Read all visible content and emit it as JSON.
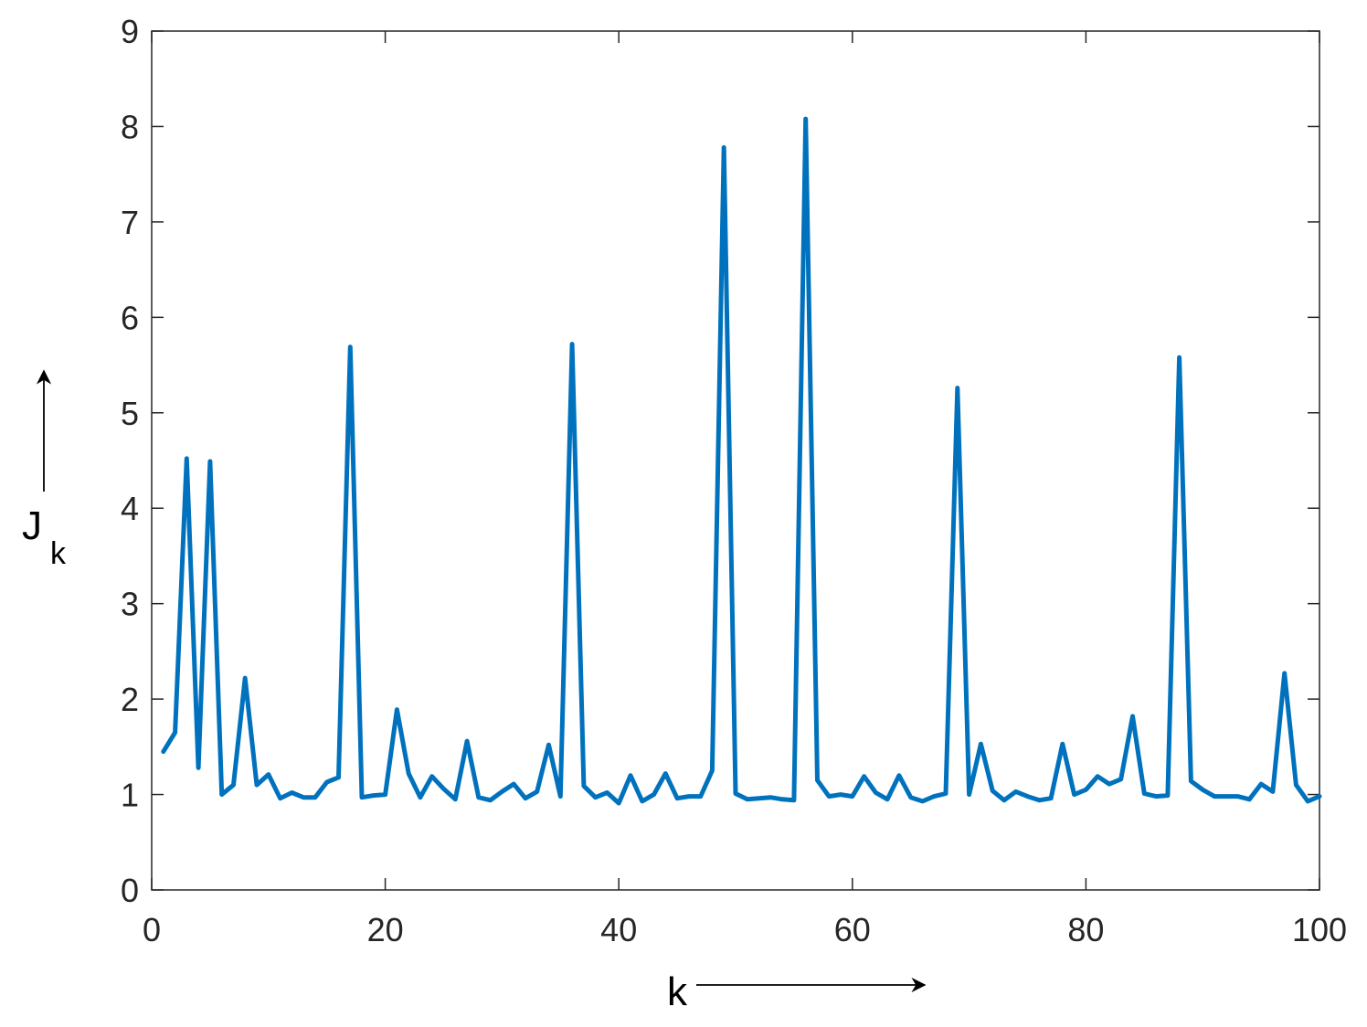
{
  "chart_data": {
    "type": "line",
    "xlabel": "k",
    "ylabel": {
      "main": "J",
      "subscript": "k"
    },
    "xlim": [
      0,
      100
    ],
    "ylim": [
      0,
      9
    ],
    "xticks": [
      "0",
      "20",
      "40",
      "60",
      "80",
      "100"
    ],
    "yticks": [
      "0",
      "1",
      "2",
      "3",
      "4",
      "5",
      "6",
      "7",
      "8",
      "9"
    ],
    "grid": false,
    "line_color": "#0072BD",
    "series": [
      {
        "x": [
          1,
          2,
          3,
          4,
          5,
          6,
          7,
          8,
          9,
          10,
          11,
          12,
          13,
          14,
          15,
          16,
          17,
          18,
          19,
          20,
          21,
          22,
          23,
          24,
          25,
          26,
          27,
          28,
          29,
          30,
          31,
          32,
          33,
          34,
          35,
          36,
          37,
          38,
          39,
          40,
          41,
          42,
          43,
          44,
          45,
          46,
          47,
          48,
          49,
          50,
          51,
          52,
          53,
          54,
          55,
          56,
          57,
          58,
          59,
          60,
          61,
          62,
          63,
          64,
          65,
          66,
          67,
          68,
          69,
          70,
          71,
          72,
          73,
          74,
          75,
          76,
          77,
          78,
          79,
          80,
          81,
          82,
          83,
          84,
          85,
          86,
          87,
          88,
          89,
          90,
          91,
          92,
          93,
          94,
          95,
          96,
          97,
          98,
          99,
          100
        ],
        "values": [
          1.45,
          1.65,
          4.52,
          1.28,
          4.49,
          1.0,
          1.1,
          2.22,
          1.1,
          1.21,
          0.96,
          1.02,
          0.97,
          0.97,
          1.13,
          1.18,
          5.69,
          0.97,
          0.99,
          1.0,
          1.89,
          1.22,
          0.97,
          1.19,
          1.06,
          0.95,
          1.56,
          0.97,
          0.94,
          1.03,
          1.11,
          0.96,
          1.03,
          1.52,
          0.98,
          5.72,
          1.09,
          0.97,
          1.02,
          0.91,
          1.2,
          0.93,
          1.0,
          1.22,
          0.96,
          0.98,
          0.98,
          1.25,
          7.78,
          1.01,
          0.95,
          0.96,
          0.97,
          0.95,
          0.94,
          8.08,
          1.15,
          0.98,
          1.0,
          0.98,
          1.19,
          1.02,
          0.95,
          1.2,
          0.97,
          0.93,
          0.98,
          1.01,
          5.26,
          1.0,
          1.53,
          1.04,
          0.94,
          1.03,
          0.98,
          0.94,
          0.96,
          1.53,
          1.0,
          1.05,
          1.19,
          1.11,
          1.16,
          1.82,
          1.01,
          0.98,
          0.99,
          5.58,
          1.14,
          1.05,
          0.98,
          0.98,
          0.98,
          0.95,
          1.11,
          1.03,
          2.27,
          1.1,
          0.93,
          0.98
        ]
      }
    ]
  }
}
